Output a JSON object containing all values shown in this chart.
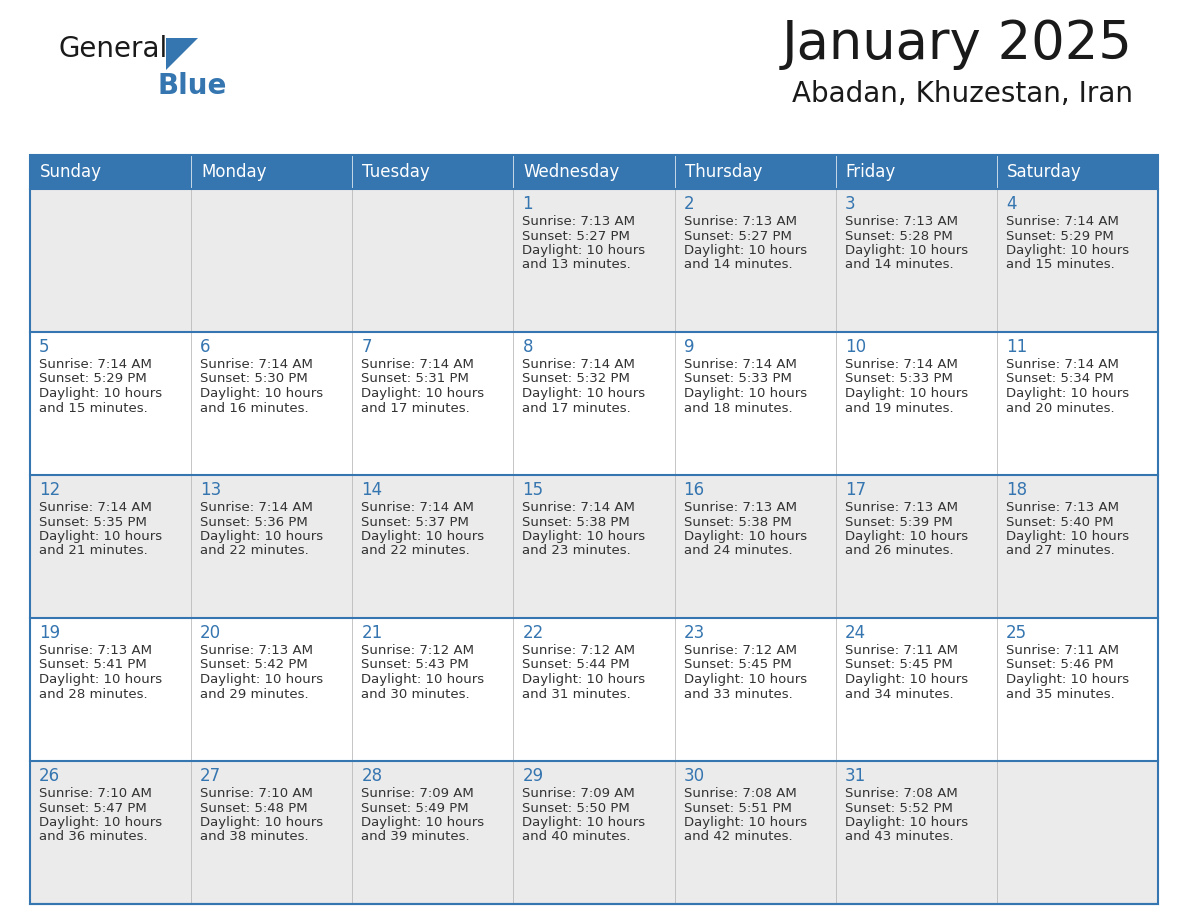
{
  "title": "January 2025",
  "subtitle": "Abadan, Khuzestan, Iran",
  "days_of_week": [
    "Sunday",
    "Monday",
    "Tuesday",
    "Wednesday",
    "Thursday",
    "Friday",
    "Saturday"
  ],
  "header_bg_color": "#3575b0",
  "header_text_color": "#ffffff",
  "row_bg_even": "#ebebeb",
  "row_bg_odd": "#ffffff",
  "day_number_color": "#3575b0",
  "text_color": "#333333",
  "border_color": "#3575b0",
  "logo_color_general": "#1a1a1a",
  "logo_color_blue": "#3575b0",
  "title_color": "#1a1a1a",
  "subtitle_color": "#1a1a1a",
  "calendar_data": [
    [
      {
        "day": null,
        "sunrise": null,
        "sunset": null,
        "daylight": null
      },
      {
        "day": null,
        "sunrise": null,
        "sunset": null,
        "daylight": null
      },
      {
        "day": null,
        "sunrise": null,
        "sunset": null,
        "daylight": null
      },
      {
        "day": 1,
        "sunrise": "7:13 AM",
        "sunset": "5:27 PM",
        "daylight": "10 hours and 13 minutes."
      },
      {
        "day": 2,
        "sunrise": "7:13 AM",
        "sunset": "5:27 PM",
        "daylight": "10 hours and 14 minutes."
      },
      {
        "day": 3,
        "sunrise": "7:13 AM",
        "sunset": "5:28 PM",
        "daylight": "10 hours and 14 minutes."
      },
      {
        "day": 4,
        "sunrise": "7:14 AM",
        "sunset": "5:29 PM",
        "daylight": "10 hours and 15 minutes."
      }
    ],
    [
      {
        "day": 5,
        "sunrise": "7:14 AM",
        "sunset": "5:29 PM",
        "daylight": "10 hours and 15 minutes."
      },
      {
        "day": 6,
        "sunrise": "7:14 AM",
        "sunset": "5:30 PM",
        "daylight": "10 hours and 16 minutes."
      },
      {
        "day": 7,
        "sunrise": "7:14 AM",
        "sunset": "5:31 PM",
        "daylight": "10 hours and 17 minutes."
      },
      {
        "day": 8,
        "sunrise": "7:14 AM",
        "sunset": "5:32 PM",
        "daylight": "10 hours and 17 minutes."
      },
      {
        "day": 9,
        "sunrise": "7:14 AM",
        "sunset": "5:33 PM",
        "daylight": "10 hours and 18 minutes."
      },
      {
        "day": 10,
        "sunrise": "7:14 AM",
        "sunset": "5:33 PM",
        "daylight": "10 hours and 19 minutes."
      },
      {
        "day": 11,
        "sunrise": "7:14 AM",
        "sunset": "5:34 PM",
        "daylight": "10 hours and 20 minutes."
      }
    ],
    [
      {
        "day": 12,
        "sunrise": "7:14 AM",
        "sunset": "5:35 PM",
        "daylight": "10 hours and 21 minutes."
      },
      {
        "day": 13,
        "sunrise": "7:14 AM",
        "sunset": "5:36 PM",
        "daylight": "10 hours and 22 minutes."
      },
      {
        "day": 14,
        "sunrise": "7:14 AM",
        "sunset": "5:37 PM",
        "daylight": "10 hours and 22 minutes."
      },
      {
        "day": 15,
        "sunrise": "7:14 AM",
        "sunset": "5:38 PM",
        "daylight": "10 hours and 23 minutes."
      },
      {
        "day": 16,
        "sunrise": "7:13 AM",
        "sunset": "5:38 PM",
        "daylight": "10 hours and 24 minutes."
      },
      {
        "day": 17,
        "sunrise": "7:13 AM",
        "sunset": "5:39 PM",
        "daylight": "10 hours and 26 minutes."
      },
      {
        "day": 18,
        "sunrise": "7:13 AM",
        "sunset": "5:40 PM",
        "daylight": "10 hours and 27 minutes."
      }
    ],
    [
      {
        "day": 19,
        "sunrise": "7:13 AM",
        "sunset": "5:41 PM",
        "daylight": "10 hours and 28 minutes."
      },
      {
        "day": 20,
        "sunrise": "7:13 AM",
        "sunset": "5:42 PM",
        "daylight": "10 hours and 29 minutes."
      },
      {
        "day": 21,
        "sunrise": "7:12 AM",
        "sunset": "5:43 PM",
        "daylight": "10 hours and 30 minutes."
      },
      {
        "day": 22,
        "sunrise": "7:12 AM",
        "sunset": "5:44 PM",
        "daylight": "10 hours and 31 minutes."
      },
      {
        "day": 23,
        "sunrise": "7:12 AM",
        "sunset": "5:45 PM",
        "daylight": "10 hours and 33 minutes."
      },
      {
        "day": 24,
        "sunrise": "7:11 AM",
        "sunset": "5:45 PM",
        "daylight": "10 hours and 34 minutes."
      },
      {
        "day": 25,
        "sunrise": "7:11 AM",
        "sunset": "5:46 PM",
        "daylight": "10 hours and 35 minutes."
      }
    ],
    [
      {
        "day": 26,
        "sunrise": "7:10 AM",
        "sunset": "5:47 PM",
        "daylight": "10 hours and 36 minutes."
      },
      {
        "day": 27,
        "sunrise": "7:10 AM",
        "sunset": "5:48 PM",
        "daylight": "10 hours and 38 minutes."
      },
      {
        "day": 28,
        "sunrise": "7:09 AM",
        "sunset": "5:49 PM",
        "daylight": "10 hours and 39 minutes."
      },
      {
        "day": 29,
        "sunrise": "7:09 AM",
        "sunset": "5:50 PM",
        "daylight": "10 hours and 40 minutes."
      },
      {
        "day": 30,
        "sunrise": "7:08 AM",
        "sunset": "5:51 PM",
        "daylight": "10 hours and 42 minutes."
      },
      {
        "day": 31,
        "sunrise": "7:08 AM",
        "sunset": "5:52 PM",
        "daylight": "10 hours and 43 minutes."
      },
      {
        "day": null,
        "sunrise": null,
        "sunset": null,
        "daylight": null
      }
    ]
  ]
}
